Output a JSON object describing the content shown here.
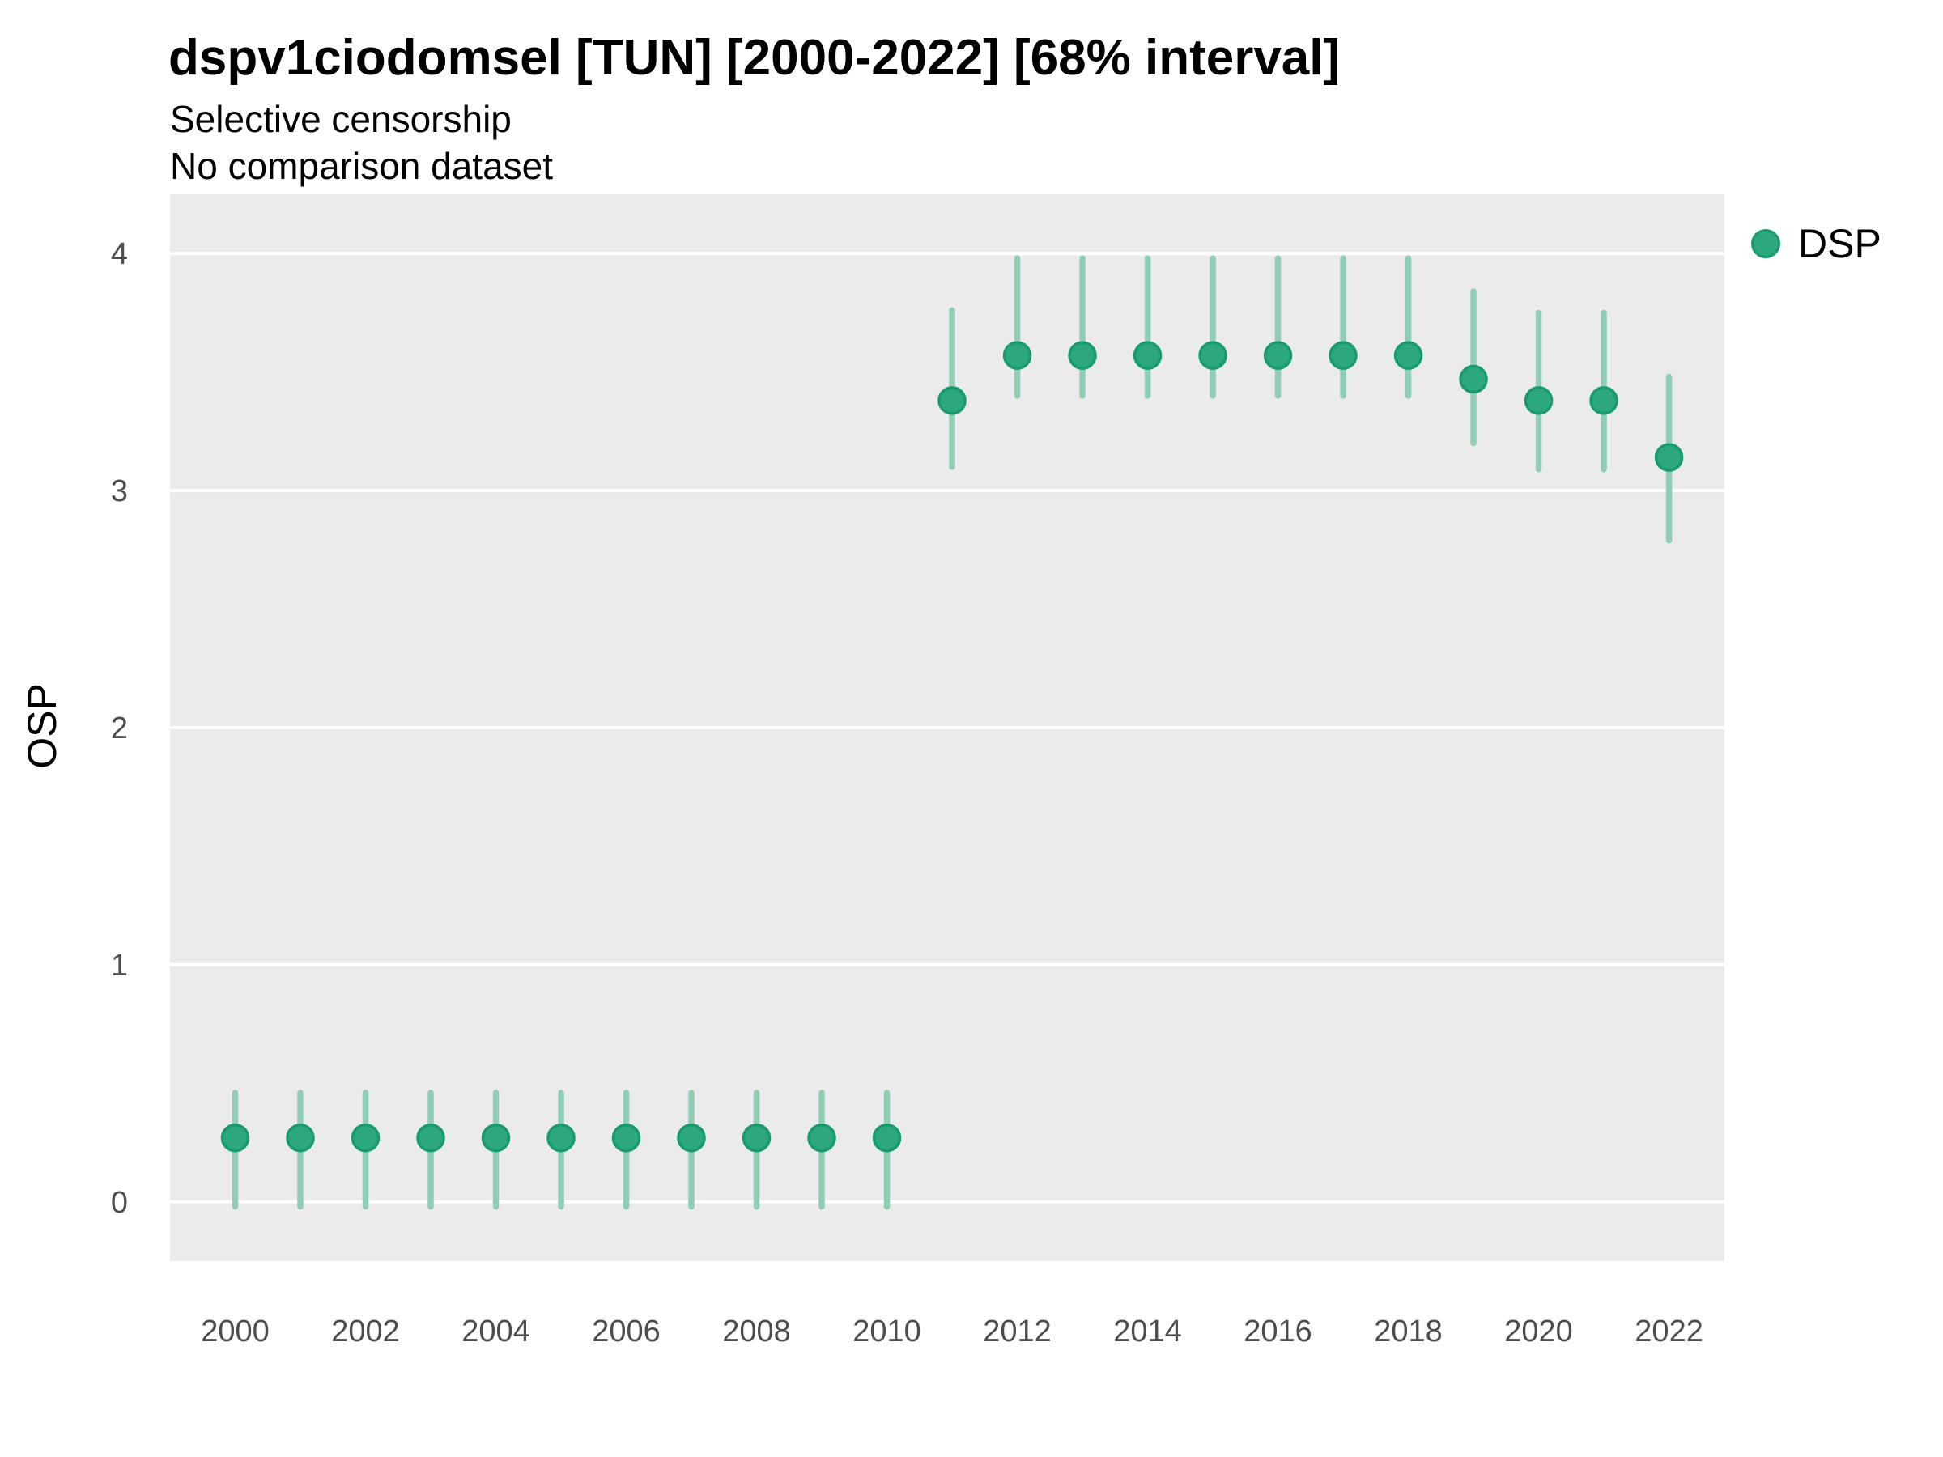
{
  "chart": {
    "title": "dspv1ciodomsel [TUN] [2000-2022] [68% interval]",
    "subtitle": "Selective censorship",
    "note": "No comparison dataset"
  },
  "chart_data": {
    "type": "scatter",
    "subtype": "pointrange (point estimate with 68% credible interval)",
    "title": "dspv1ciodomsel [TUN] [2000-2022] [68% interval]",
    "subtitle": "Selective censorship",
    "note": "No comparison dataset",
    "xlabel": "",
    "ylabel": "OSP",
    "legend_position": "right-top",
    "grid": "horizontal-major-only",
    "interval_level": "68%",
    "series": [
      {
        "name": "DSP",
        "x": [
          2000,
          2001,
          2002,
          2003,
          2004,
          2005,
          2006,
          2007,
          2008,
          2009,
          2010,
          2011,
          2012,
          2013,
          2014,
          2015,
          2016,
          2017,
          2018,
          2019,
          2020,
          2021,
          2022
        ],
        "mean": [
          0.27,
          0.27,
          0.27,
          0.27,
          0.27,
          0.27,
          0.27,
          0.27,
          0.27,
          0.27,
          0.27,
          3.38,
          3.57,
          3.57,
          3.57,
          3.57,
          3.57,
          3.57,
          3.57,
          3.47,
          3.38,
          3.38,
          3.14
        ],
        "lo": [
          -0.02,
          -0.02,
          -0.02,
          -0.02,
          -0.02,
          -0.02,
          -0.02,
          -0.02,
          -0.02,
          -0.02,
          -0.02,
          3.1,
          3.4,
          3.4,
          3.4,
          3.4,
          3.4,
          3.4,
          3.4,
          3.2,
          3.09,
          3.09,
          2.79
        ],
        "hi": [
          0.46,
          0.46,
          0.46,
          0.46,
          0.46,
          0.46,
          0.46,
          0.46,
          0.46,
          0.46,
          0.46,
          3.76,
          3.98,
          3.98,
          3.98,
          3.98,
          3.98,
          3.98,
          3.98,
          3.84,
          3.75,
          3.75,
          3.48
        ]
      }
    ],
    "x_ticks": [
      2000,
      2002,
      2004,
      2006,
      2008,
      2010,
      2012,
      2014,
      2016,
      2018,
      2020,
      2022
    ],
    "y_ticks": [
      0,
      1,
      2,
      3,
      4
    ],
    "xlim": [
      1999.0,
      2022.85
    ],
    "ylim": [
      -0.25,
      4.25
    ],
    "colors": {
      "point_fill": "#2ca87c",
      "point_stroke": "#189c6c",
      "interval": "#8fceb3",
      "panel_bg": "#ebebeb",
      "grid": "#ffffff",
      "tick_text": "#4d4d4d"
    }
  }
}
